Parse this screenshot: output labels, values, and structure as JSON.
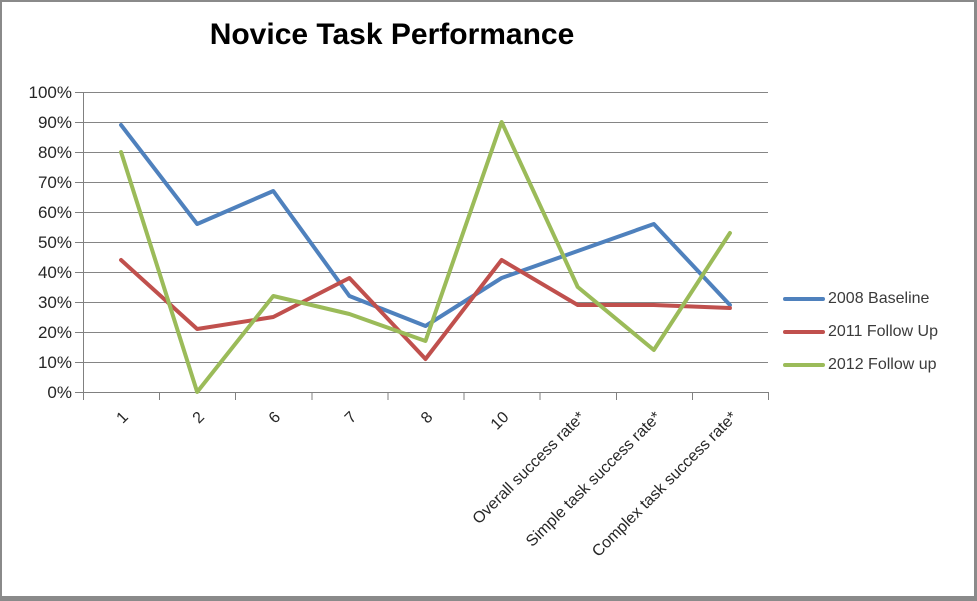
{
  "title": "Novice Task Performance",
  "chart_data": {
    "type": "line",
    "title": "Novice Task Performance",
    "unit": "%",
    "categories": [
      "1",
      "2",
      "6",
      "7",
      "8",
      "10",
      "Overall success rate*",
      "Simple task success rate*",
      "Complex task success rate*"
    ],
    "series": [
      {
        "name": "2008 Baseline",
        "color": "#4F81BD",
        "values": [
          89,
          56,
          67,
          32,
          22,
          38,
          47,
          56,
          29
        ]
      },
      {
        "name": "2011 Follow Up",
        "color": "#C0504D",
        "values": [
          44,
          21,
          25,
          38,
          11,
          44,
          29,
          29,
          28
        ]
      },
      {
        "name": "2012 Follow up",
        "color": "#9BBB59",
        "values": [
          80,
          0,
          32,
          26,
          17,
          90,
          35,
          14,
          53
        ]
      }
    ],
    "y_axis": {
      "min": 0,
      "max": 100,
      "step": 10,
      "tick_labels": [
        "0%",
        "10%",
        "20%",
        "30%",
        "40%",
        "50%",
        "60%",
        "70%",
        "80%",
        "90%",
        "100%"
      ]
    },
    "x_axis": {
      "label_rotation_deg": -45
    },
    "grid": true,
    "legend_position": "right",
    "colors": {
      "gridline": "#858585",
      "axis": "#808080",
      "tick_text": "#262626",
      "title_text": "#000000",
      "window_border": "#8a8a8a",
      "background": "#ffffff"
    }
  }
}
